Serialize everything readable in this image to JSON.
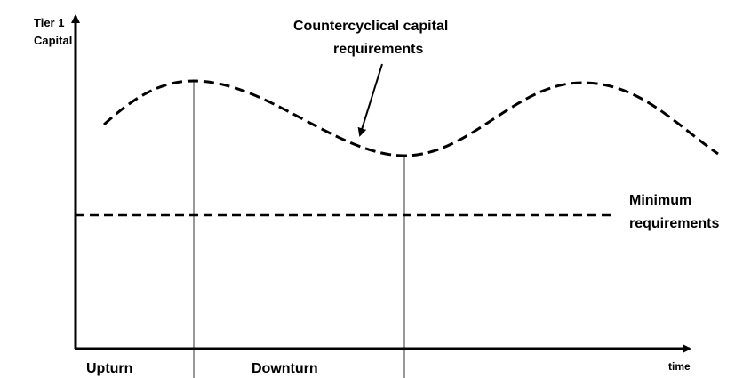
{
  "y_axis_label": [
    "Tier 1",
    "Capital"
  ],
  "curve_label": [
    "Countercyclical capital",
    "requirements"
  ],
  "minimum_label": [
    "Minimum",
    "requirements"
  ],
  "phases": [
    "Upturn",
    "Downturn"
  ],
  "x_axis_label": "time"
}
